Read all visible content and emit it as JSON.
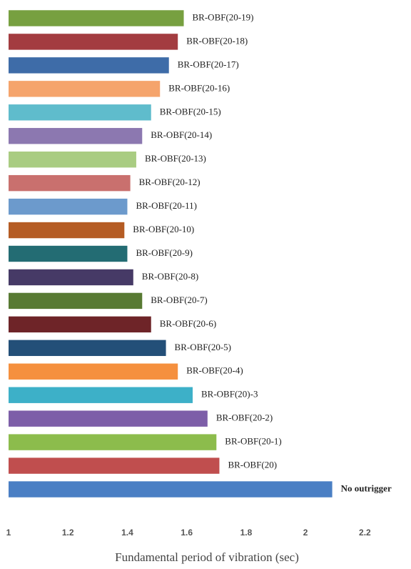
{
  "chart_data": {
    "type": "barh",
    "xlabel": "Fundamental period of vibration (sec)",
    "categories": [
      "BR-OBF(20-19)",
      "BR-OBF(20-18)",
      "BR-OBF(20-17)",
      "BR-OBF(20-16)",
      "BR-OBF(20-15)",
      "BR-OBF(20-14)",
      "BR-OBF(20-13)",
      "BR-OBF(20-12)",
      "BR-OBF(20-11)",
      "BR-OBF(20-10)",
      "BR-OBF(20-9)",
      "BR-OBF(20-8)",
      "BR-OBF(20-7)",
      "BR-OBF(20-6)",
      "BR-OBF(20-5)",
      "BR-OBF(20-4)",
      "BR-OBF(20)-3",
      "BR-OBF(20-2)",
      "BR-OBF(20-1)",
      "BR-OBF(20)",
      "No outrigger"
    ],
    "values": [
      1.59,
      1.57,
      1.54,
      1.51,
      1.48,
      1.45,
      1.43,
      1.41,
      1.4,
      1.39,
      1.4,
      1.42,
      1.45,
      1.48,
      1.53,
      1.57,
      1.62,
      1.67,
      1.7,
      1.71,
      2.09
    ],
    "colors": [
      "#77a040",
      "#a33c40",
      "#3e6ca8",
      "#f5a46c",
      "#5fbccc",
      "#8c78b0",
      "#a9cc82",
      "#c9706e",
      "#6c9acc",
      "#b55c24",
      "#236c73",
      "#463a66",
      "#587a33",
      "#6e2428",
      "#234f78",
      "#f5903e",
      "#3db0c8",
      "#7d5ea8",
      "#8cbc4c",
      "#c04e4e",
      "#4a7fc4"
    ],
    "xlim": [
      1,
      2.3
    ],
    "xticks": [
      1,
      1.2,
      1.4,
      1.6,
      1.8,
      2,
      2.2
    ],
    "grid": false
  }
}
